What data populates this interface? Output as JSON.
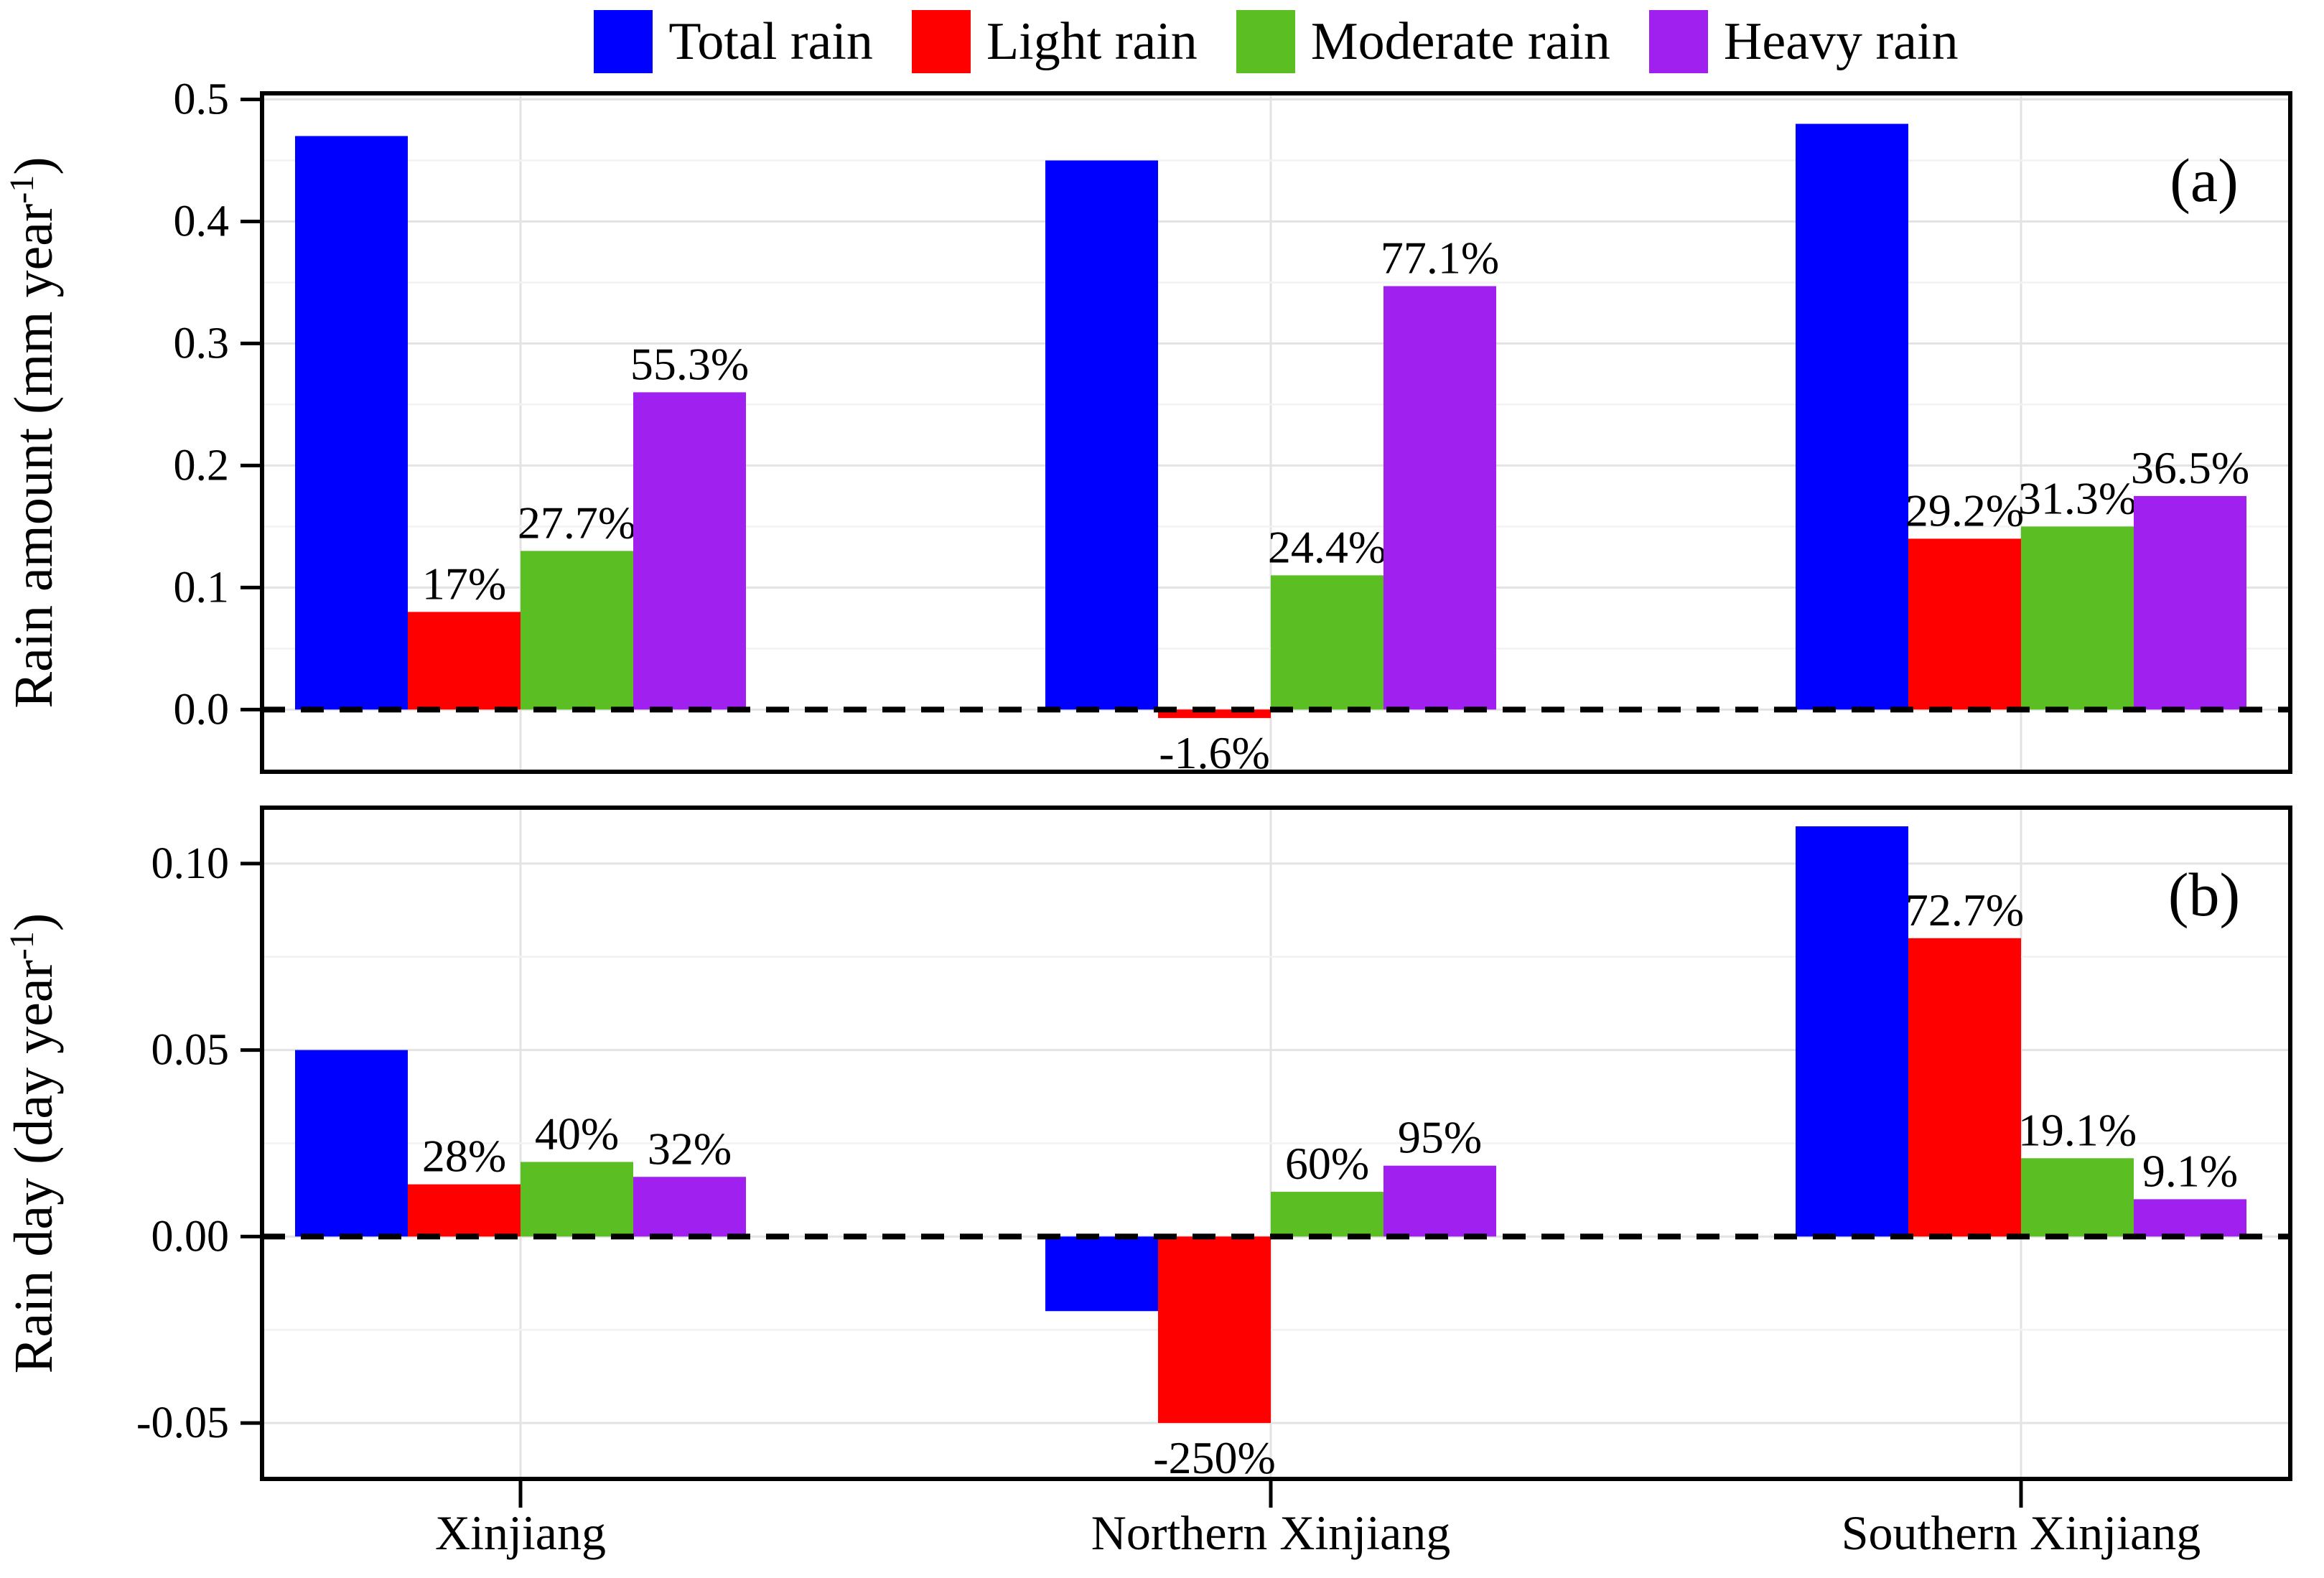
{
  "legend": {
    "items": [
      {
        "label": "Total rain",
        "color": "#0000ff"
      },
      {
        "label": "Light rain",
        "color": "#ff0000"
      },
      {
        "label": "Moderate rain",
        "color": "#5bbe23"
      },
      {
        "label": "Heavy rain",
        "color": "#a020f0"
      }
    ]
  },
  "categories": [
    "Xinjiang",
    "Northern Xinjiang",
    "Southern Xinjiang"
  ],
  "chart_data": [
    {
      "type": "bar",
      "panel_label": "(a)",
      "ylabel": {
        "pre": "Rain amount (mm year",
        "sup": "-1",
        "post": ")"
      },
      "ylim": [
        -0.051,
        0.505
      ],
      "yticks": [
        0.0,
        0.1,
        0.2,
        0.3,
        0.4,
        0.5
      ],
      "ytick_labels": [
        "0.0",
        "0.1",
        "0.2",
        "0.3",
        "0.4",
        "0.5"
      ],
      "minor_step": 0.05,
      "grid": true,
      "zero_line": true,
      "series": [
        {
          "name": "Total rain",
          "color": "#0000ff",
          "values": [
            0.47,
            0.45,
            0.48
          ],
          "labels": [
            "",
            "",
            ""
          ]
        },
        {
          "name": "Light rain",
          "color": "#ff0000",
          "values": [
            0.08,
            -0.007,
            0.14
          ],
          "labels": [
            "17%",
            "-1.6%",
            "29.2%"
          ]
        },
        {
          "name": "Moderate rain",
          "color": "#5bbe23",
          "values": [
            0.13,
            0.11,
            0.15
          ],
          "labels": [
            "27.7%",
            "24.4%",
            "31.3%"
          ]
        },
        {
          "name": "Heavy rain",
          "color": "#a020f0",
          "values": [
            0.26,
            0.347,
            0.175
          ],
          "labels": [
            "55.3%",
            "77.1%",
            "36.5%"
          ]
        }
      ]
    },
    {
      "type": "bar",
      "panel_label": "(b)",
      "ylabel": {
        "pre": "Rain day (day year",
        "sup": "-1",
        "post": ")"
      },
      "ylim": [
        -0.065,
        0.115
      ],
      "yticks": [
        -0.05,
        0.0,
        0.05,
        0.1
      ],
      "ytick_labels": [
        "-0.05",
        "0.00",
        "0.05",
        "0.10"
      ],
      "minor_step": 0.025,
      "grid": true,
      "zero_line": true,
      "series": [
        {
          "name": "Total rain",
          "color": "#0000ff",
          "values": [
            0.05,
            -0.02,
            0.11
          ],
          "labels": [
            "",
            "",
            ""
          ]
        },
        {
          "name": "Light rain",
          "color": "#ff0000",
          "values": [
            0.014,
            -0.05,
            0.08
          ],
          "labels": [
            "28%",
            "-250%",
            "72.7%"
          ]
        },
        {
          "name": "Moderate rain",
          "color": "#5bbe23",
          "values": [
            0.02,
            0.012,
            0.021
          ],
          "labels": [
            "40%",
            "60%",
            "19.1%"
          ]
        },
        {
          "name": "Heavy rain",
          "color": "#a020f0",
          "values": [
            0.016,
            0.019,
            0.01
          ],
          "labels": [
            "32%",
            "95%",
            "9.1%"
          ]
        }
      ]
    }
  ]
}
